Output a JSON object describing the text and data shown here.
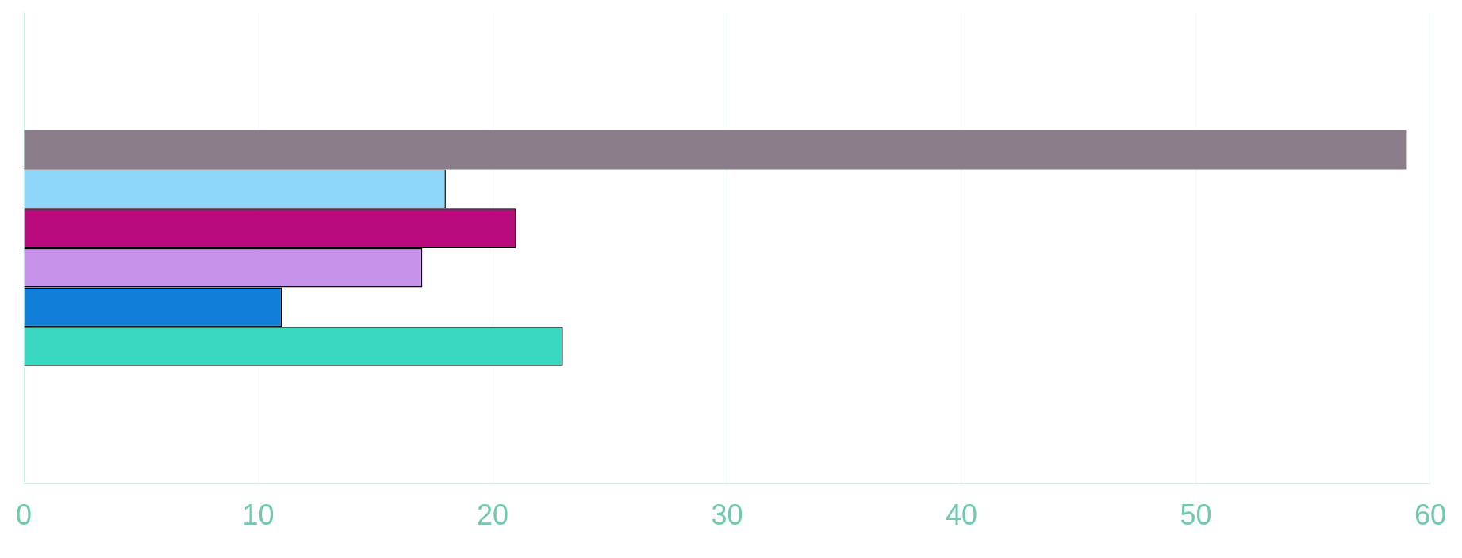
{
  "chart_data": {
    "type": "bar",
    "orientation": "horizontal",
    "categories": [
      null
    ],
    "series": [
      {
        "color": "#8c7d8a",
        "values": [
          59
        ]
      },
      {
        "color": "#8fd6fb",
        "values": [
          18
        ]
      },
      {
        "color": "#b80b7b",
        "values": [
          21
        ]
      },
      {
        "color": "#c792ea",
        "values": [
          17
        ]
      },
      {
        "color": "#0f7fd9",
        "values": [
          11
        ]
      },
      {
        "color": "#3ad8c1",
        "values": [
          23
        ]
      }
    ],
    "xlim": [
      0,
      60
    ],
    "xticks": [
      0,
      10,
      20,
      30,
      40,
      50,
      60
    ],
    "grid": "x",
    "legend": false
  }
}
